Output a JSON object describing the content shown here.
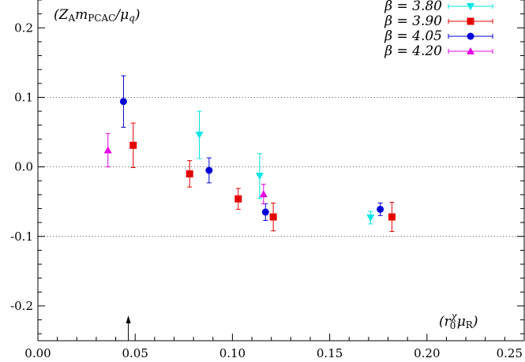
{
  "chart_data": {
    "type": "scatter",
    "title": "",
    "xlabel": "",
    "ylabel": "",
    "annotations": {
      "y_quantity": "(Z_A m_PCAC/μ_q)",
      "x_quantity": "(r0^χ μR)"
    },
    "xlim": [
      0.0,
      0.25
    ],
    "ylim": [
      -0.25,
      0.24
    ],
    "x_ticks": [
      {
        "value": 0.0,
        "label": "0.00"
      },
      {
        "value": 0.05,
        "label": "0.05"
      },
      {
        "value": 0.1,
        "label": "0.10"
      },
      {
        "value": 0.15,
        "label": "0.15"
      },
      {
        "value": 0.2,
        "label": "0.20"
      },
      {
        "value": 0.25,
        "label": "0.25"
      }
    ],
    "y_ticks": [
      {
        "value": 0.2,
        "label": "0.2"
      },
      {
        "value": 0.1,
        "label": "0.1"
      },
      {
        "value": 0.0,
        "label": "0.0"
      },
      {
        "value": -0.1,
        "label": "-0.1"
      },
      {
        "value": -0.2,
        "label": "-0.2"
      }
    ],
    "grid": "horizontal dotted at 0.1, 0.0, -0.1",
    "legend_position": "top-right",
    "arrow_marker_x": 0.0465,
    "series": [
      {
        "name": "β = 3.80",
        "color": "#00e5e5",
        "marker": "triangle-down",
        "points": [
          {
            "x": 0.083,
            "y": 0.046,
            "err": 0.034
          },
          {
            "x": 0.114,
            "y": -0.013,
            "err": 0.032
          },
          {
            "x": 0.171,
            "y": -0.073,
            "err": 0.009
          }
        ]
      },
      {
        "name": "β = 3.90",
        "color": "#e50000",
        "marker": "square",
        "points": [
          {
            "x": 0.049,
            "y": 0.031,
            "err": 0.032
          },
          {
            "x": 0.078,
            "y": -0.01,
            "err": 0.019
          },
          {
            "x": 0.103,
            "y": -0.046,
            "err": 0.015
          },
          {
            "x": 0.121,
            "y": -0.072,
            "err": 0.02
          },
          {
            "x": 0.182,
            "y": -0.072,
            "err": 0.021
          }
        ]
      },
      {
        "name": "β = 4.05",
        "color": "#0000d8",
        "marker": "circle",
        "points": [
          {
            "x": 0.044,
            "y": 0.094,
            "err": 0.037
          },
          {
            "x": 0.088,
            "y": -0.005,
            "err": 0.018
          },
          {
            "x": 0.117,
            "y": -0.065,
            "err": 0.012
          },
          {
            "x": 0.176,
            "y": -0.061,
            "err": 0.009
          }
        ]
      },
      {
        "name": "β = 4.20",
        "color": "#e500e5",
        "marker": "triangle-up",
        "points": [
          {
            "x": 0.036,
            "y": 0.024,
            "err": 0.024
          },
          {
            "x": 0.116,
            "y": -0.039,
            "err": 0.014
          }
        ]
      }
    ]
  }
}
